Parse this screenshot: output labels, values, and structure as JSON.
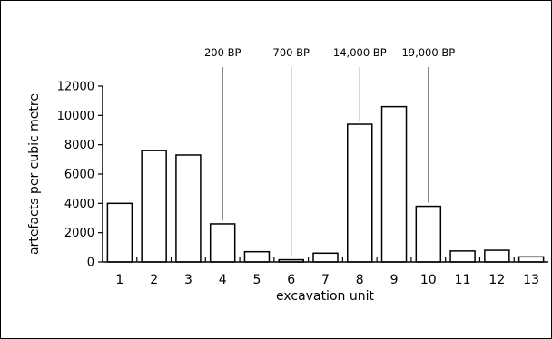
{
  "chart_data": {
    "type": "bar",
    "title": "",
    "xlabel": "excavation unit",
    "ylabel": "artefacts per cubic metre",
    "categories": [
      "1",
      "2",
      "3",
      "4",
      "5",
      "6",
      "7",
      "8",
      "9",
      "10",
      "11",
      "12",
      "13"
    ],
    "values": [
      4000,
      7600,
      7300,
      2600,
      700,
      150,
      600,
      9400,
      10600,
      3800,
      750,
      800,
      350
    ],
    "ylim": [
      0,
      12000
    ],
    "yticks": [
      0,
      2000,
      4000,
      6000,
      8000,
      10000,
      12000
    ],
    "grid": false,
    "annotations": [
      {
        "label": "200 BP",
        "category": "4"
      },
      {
        "label": "700 BP",
        "category": "6"
      },
      {
        "label": "14,000 BP",
        "category": "8"
      },
      {
        "label": "19,000 BP",
        "category": "10"
      }
    ],
    "colors": {
      "bar_fill": "#ffffff",
      "bar_stroke": "#000000"
    }
  }
}
